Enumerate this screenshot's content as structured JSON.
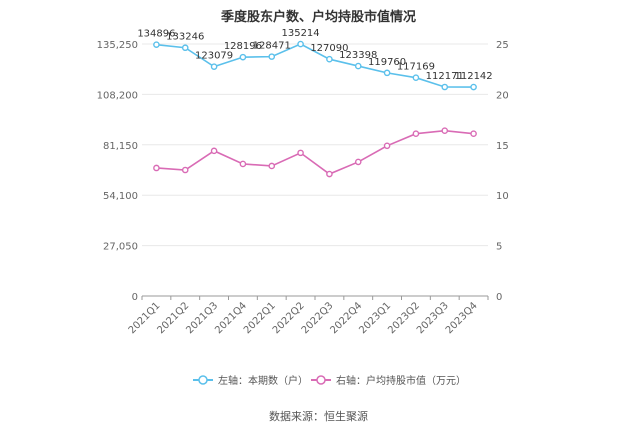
{
  "title": "季度股东户数、户均持股市值情况",
  "source": "数据来源：恒生聚源",
  "colors": {
    "left_series": "#5bc0eb",
    "right_series": "#d96bb5",
    "grid": "#e8e8e8",
    "axis_text": "#666666"
  },
  "chart_data": {
    "type": "line",
    "title": "季度股东户数、户均持股市值情况",
    "categories": [
      "2021Q1",
      "2021Q2",
      "2021Q3",
      "2021Q4",
      "2022Q1",
      "2022Q2",
      "2022Q3",
      "2022Q4",
      "2023Q1",
      "2023Q2",
      "2023Q3",
      "2023Q4"
    ],
    "left_axis": {
      "ticks": [
        0,
        27050,
        54100,
        81150,
        108200,
        135250
      ],
      "tick_labels": [
        "0",
        "27,050",
        "54,100",
        "81,150",
        "108,200",
        "135,250"
      ],
      "ylim": [
        0,
        135250
      ]
    },
    "right_axis": {
      "ticks": [
        0,
        5,
        10,
        15,
        20,
        25
      ],
      "tick_labels": [
        "0",
        "5",
        "10",
        "15",
        "20",
        "25"
      ],
      "ylim": [
        0,
        25
      ]
    },
    "grid": true,
    "legend_position": "bottom",
    "series": [
      {
        "name": "左轴：本期数（户）",
        "axis": "left",
        "values": [
          134896,
          133246,
          123079,
          128196,
          128471,
          135214,
          127090,
          123398,
          119760,
          117169,
          112171,
          112142
        ],
        "labels": [
          "134896",
          "133246",
          "123079",
          "128196",
          "128471",
          "135214",
          "127090",
          "123398",
          "119760",
          "117169",
          "112171",
          "112142"
        ]
      },
      {
        "name": "右轴：户均持股市值（万元）",
        "axis": "right",
        "values": [
          12.7,
          12.5,
          14.4,
          13.1,
          12.9,
          14.2,
          12.1,
          13.3,
          14.9,
          16.1,
          16.4,
          16.1
        ]
      }
    ]
  }
}
